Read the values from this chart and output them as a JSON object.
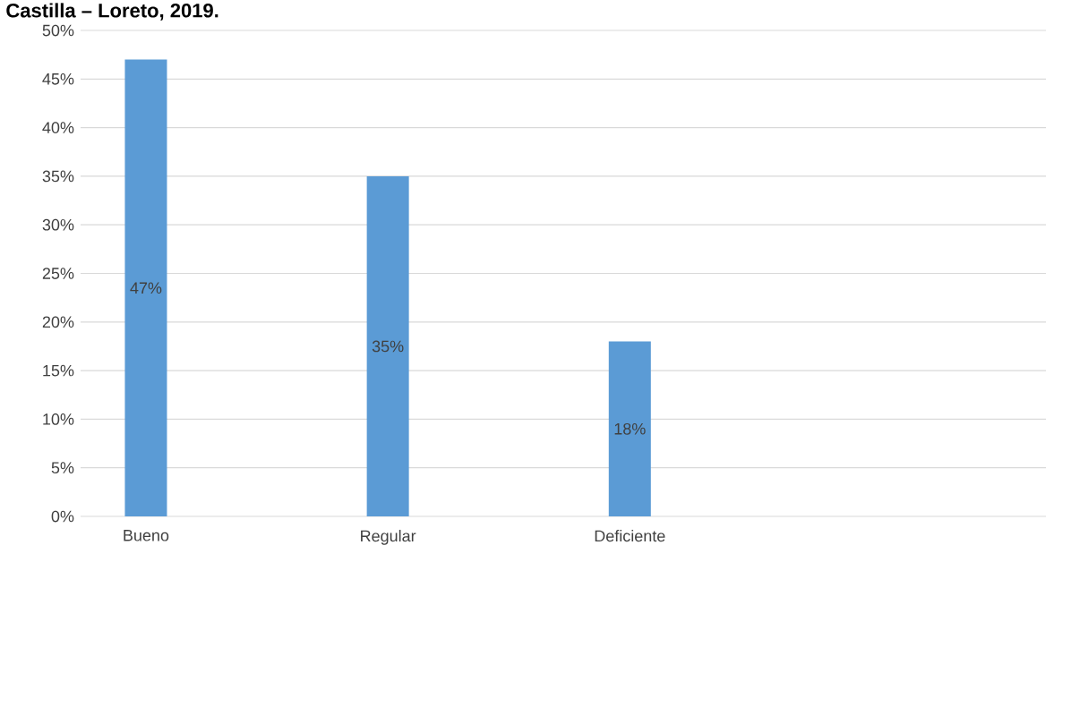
{
  "chart_data": {
    "type": "bar",
    "title": "Castilla – Loreto, 2019.",
    "categories": [
      "Bueno",
      "Regular",
      "Deficiente"
    ],
    "values": [
      47,
      35,
      18
    ],
    "value_labels": [
      "47%",
      "35%",
      "18%"
    ],
    "color": "#5b9bd5",
    "ylim": [
      0,
      50
    ],
    "yticks": [
      {
        "value": 0,
        "label": "0%"
      },
      {
        "value": 5,
        "label": "5%"
      },
      {
        "value": 10,
        "label": "10%"
      },
      {
        "value": 15,
        "label": "15%"
      },
      {
        "value": 20,
        "label": "20%"
      },
      {
        "value": 25,
        "label": "25%"
      },
      {
        "value": 30,
        "label": "30%"
      },
      {
        "value": 35,
        "label": "35%"
      },
      {
        "value": 40,
        "label": "40%"
      },
      {
        "value": 45,
        "label": "45%"
      },
      {
        "value": 50,
        "label": "50%"
      }
    ],
    "grid": "y"
  }
}
